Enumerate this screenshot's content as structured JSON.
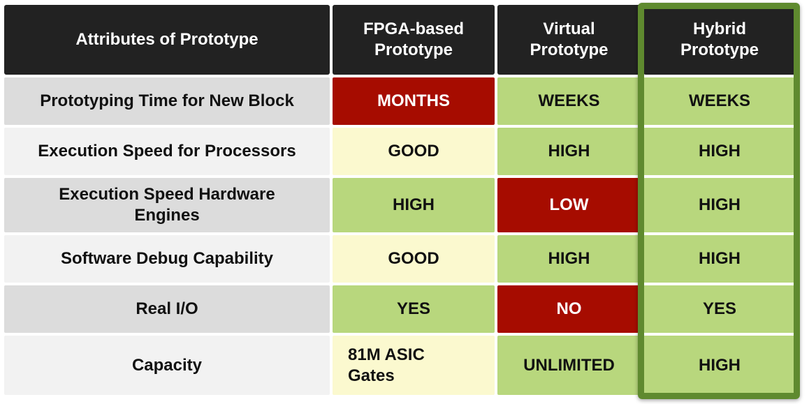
{
  "chart_data": {
    "type": "table",
    "columns": [
      "Attributes of Prototype",
      "FPGA-based Prototype",
      "Virtual Prototype",
      "Hybrid Prototype"
    ],
    "rows": [
      {
        "attribute": "Prototyping Time for New Block",
        "cells": [
          {
            "value": "MONTHS",
            "color": "#a60c00"
          },
          {
            "value": "WEEKS",
            "color": "#b8d77d"
          },
          {
            "value": "WEEKS",
            "color": "#b8d77d"
          }
        ]
      },
      {
        "attribute": "Execution Speed for Processors",
        "cells": [
          {
            "value": "GOOD",
            "color": "#fbf9cf"
          },
          {
            "value": "HIGH",
            "color": "#b8d77d"
          },
          {
            "value": "HIGH",
            "color": "#b8d77d"
          }
        ]
      },
      {
        "attribute": "Execution Speed Hardware Engines",
        "cells": [
          {
            "value": "HIGH",
            "color": "#b8d77d"
          },
          {
            "value": "LOW",
            "color": "#a60c00"
          },
          {
            "value": "HIGH",
            "color": "#b8d77d"
          }
        ]
      },
      {
        "attribute": "Software Debug Capability",
        "cells": [
          {
            "value": "GOOD",
            "color": "#fbf9cf"
          },
          {
            "value": "HIGH",
            "color": "#b8d77d"
          },
          {
            "value": "HIGH",
            "color": "#b8d77d"
          }
        ]
      },
      {
        "attribute": "Real I/O",
        "cells": [
          {
            "value": "YES",
            "color": "#b8d77d"
          },
          {
            "value": "NO",
            "color": "#a60c00"
          },
          {
            "value": "YES",
            "color": "#b8d77d"
          }
        ]
      },
      {
        "attribute": "Capacity",
        "cells": [
          {
            "value": "81M ASIC Gates",
            "color": "#fbf9cf"
          },
          {
            "value": "UNLIMITED",
            "color": "#b8d77d"
          },
          {
            "value": "HIGH",
            "color": "#b8d77d"
          }
        ]
      }
    ],
    "highlighted_column": "Hybrid Prototype",
    "colors": {
      "header_bg": "#222222",
      "red": "#a60c00",
      "green": "#b8d77d",
      "yellow": "#fbf9cf",
      "highlight_border": "#5f8a2f"
    }
  }
}
